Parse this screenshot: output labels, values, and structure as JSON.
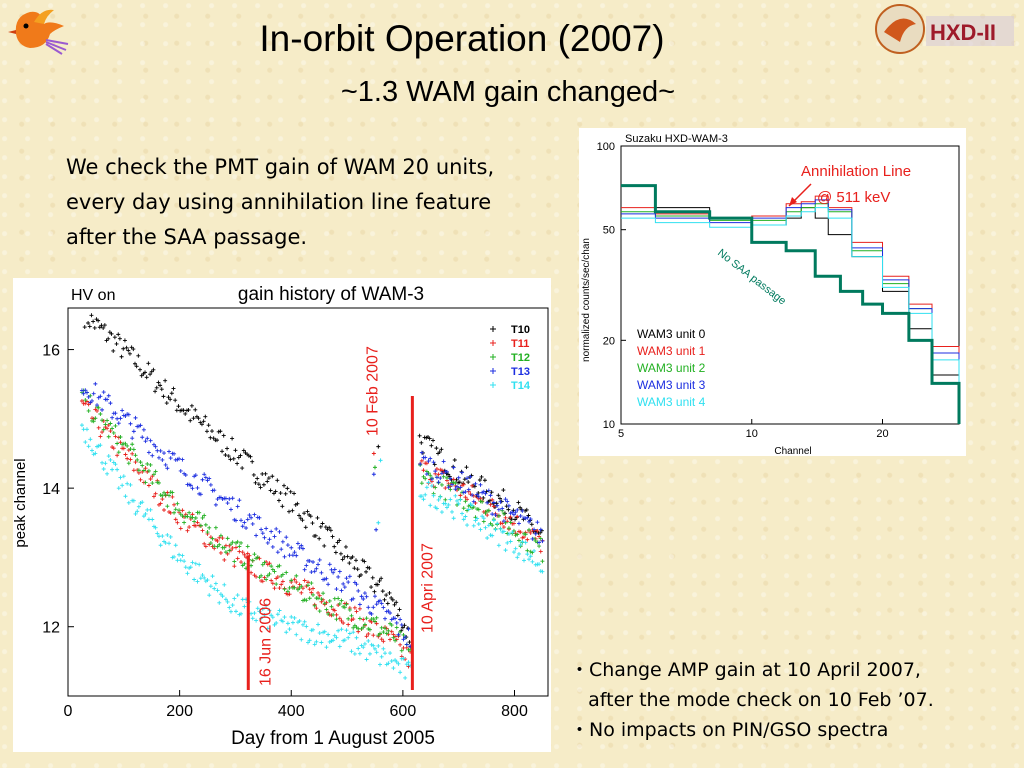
{
  "slide": {
    "title": "In-orbit Operation (2007)",
    "subtitle": "~1.3 WAM gain changed~",
    "intro_lines": [
      "We check the PMT gain of WAM 20 units,",
      "every day using annihilation line feature",
      "after the SAA passage."
    ],
    "bullets": [
      "・Change AMP gain at 10 April 2007,",
      "   after the mode check on 10 Feb ’07.",
      "・No impacts on PIN/GSO spectra"
    ],
    "logo_text": "HXD-II"
  },
  "colors": {
    "unit0": "#000000",
    "unit1": "#e8201c",
    "unit2": "#22b022",
    "unit3": "#1c2ee0",
    "unit4": "#30e0f0",
    "marker": "#e8201c",
    "annotation": "#e8201c",
    "passage": "#007a5e"
  },
  "chart_data": [
    {
      "type": "scatter",
      "title": "gain history of WAM-3",
      "corner_label": "HV on",
      "xlabel": "Day from 1 August 2005",
      "ylabel": "peak channel",
      "xlim": [
        0,
        860
      ],
      "ylim": [
        11,
        16.6
      ],
      "xticks": [
        0,
        200,
        400,
        600,
        800
      ],
      "yticks": [
        12,
        14,
        16
      ],
      "series": [
        {
          "name": "T10",
          "points": [
            [
              30,
              16.5
            ],
            [
              100,
              16.0
            ],
            [
              200,
              15.2
            ],
            [
              300,
              14.5
            ],
            [
              400,
              13.8
            ],
            [
              500,
              13.0
            ],
            [
              580,
              12.4
            ],
            [
              615,
              11.8
            ],
            [
              630,
              14.7
            ],
            [
              700,
              14.2
            ],
            [
              800,
              13.7
            ],
            [
              850,
              13.3
            ]
          ]
        },
        {
          "name": "T11",
          "points": [
            [
              25,
              15.2
            ],
            [
              100,
              14.5
            ],
            [
              200,
              13.6
            ],
            [
              300,
              13.0
            ],
            [
              400,
              12.6
            ],
            [
              500,
              12.2
            ],
            [
              580,
              11.8
            ],
            [
              615,
              11.5
            ],
            [
              630,
              14.3
            ],
            [
              700,
              14.0
            ],
            [
              800,
              13.5
            ],
            [
              850,
              13.2
            ]
          ]
        },
        {
          "name": "T12",
          "points": [
            [
              25,
              15.3
            ],
            [
              100,
              14.6
            ],
            [
              200,
              13.7
            ],
            [
              300,
              13.1
            ],
            [
              400,
              12.6
            ],
            [
              500,
              12.2
            ],
            [
              580,
              11.9
            ],
            [
              615,
              11.6
            ],
            [
              630,
              14.2
            ],
            [
              700,
              13.9
            ],
            [
              800,
              13.4
            ],
            [
              850,
              13.1
            ]
          ]
        },
        {
          "name": "T13",
          "points": [
            [
              25,
              15.5
            ],
            [
              100,
              15.0
            ],
            [
              200,
              14.3
            ],
            [
              300,
              13.7
            ],
            [
              400,
              13.1
            ],
            [
              500,
              12.6
            ],
            [
              580,
              12.1
            ],
            [
              615,
              11.8
            ],
            [
              630,
              14.4
            ],
            [
              700,
              14.1
            ],
            [
              800,
              13.6
            ],
            [
              850,
              13.3
            ]
          ]
        },
        {
          "name": "T14",
          "points": [
            [
              25,
              14.9
            ],
            [
              100,
              14.0
            ],
            [
              200,
              13.0
            ],
            [
              300,
              12.3
            ],
            [
              400,
              12.0
            ],
            [
              500,
              11.8
            ],
            [
              580,
              11.5
            ],
            [
              615,
              11.3
            ],
            [
              630,
              14.0
            ],
            [
              700,
              13.7
            ],
            [
              800,
              13.2
            ],
            [
              850,
              12.9
            ]
          ]
        }
      ],
      "markers": [
        {
          "day": 323,
          "label": "16 Jun 2006"
        },
        {
          "day": 558,
          "label": "10 Feb 2007"
        },
        {
          "day": 617,
          "label": "10 Apri 2007"
        }
      ]
    },
    {
      "type": "line",
      "title": "Suzaku HXD-WAM-3",
      "xlabel": "Channel",
      "ylabel": "normalized counts/sec/chan",
      "xlim": [
        5,
        30
      ],
      "ylim": [
        10,
        100
      ],
      "yscale": "log",
      "xscale": "log",
      "xticks": [
        5,
        10,
        20
      ],
      "yticks": [
        10,
        20,
        50,
        100
      ],
      "annotation": "Annihilation Line\n@ 511 keV",
      "annotation_lines": [
        "Annihilation Line",
        "@ 511 keV"
      ],
      "passage_label": "No SAA passage",
      "series": [
        {
          "name": "WAM3 unit 0",
          "points": [
            [
              5,
              72
            ],
            [
              6,
              60
            ],
            [
              8,
              55
            ],
            [
              10,
              52
            ],
            [
              12,
              55
            ],
            [
              13,
              60
            ],
            [
              14,
              55
            ],
            [
              15,
              48
            ],
            [
              17,
              40
            ],
            [
              20,
              30
            ],
            [
              23,
              22
            ],
            [
              26,
              15
            ],
            [
              30,
              10
            ]
          ]
        },
        {
          "name": "WAM3 unit 1",
          "points": [
            [
              5,
              60
            ],
            [
              6,
              57
            ],
            [
              8,
              55
            ],
            [
              10,
              56
            ],
            [
              12,
              62
            ],
            [
              13,
              63
            ],
            [
              14,
              66
            ],
            [
              15,
              60
            ],
            [
              17,
              45
            ],
            [
              20,
              34
            ],
            [
              23,
              27
            ],
            [
              26,
              19
            ],
            [
              30,
              11
            ]
          ]
        },
        {
          "name": "WAM3 unit 2",
          "points": [
            [
              5,
              58
            ],
            [
              6,
              56
            ],
            [
              8,
              54
            ],
            [
              10,
              54
            ],
            [
              12,
              58
            ],
            [
              13,
              60
            ],
            [
              14,
              62
            ],
            [
              15,
              58
            ],
            [
              17,
              42
            ],
            [
              20,
              32
            ],
            [
              23,
              26
            ],
            [
              26,
              18
            ],
            [
              30,
              11
            ]
          ]
        },
        {
          "name": "WAM3 unit 3",
          "points": [
            [
              5,
              57
            ],
            [
              6,
              55
            ],
            [
              8,
              53
            ],
            [
              10,
              55
            ],
            [
              12,
              60
            ],
            [
              13,
              62
            ],
            [
              14,
              64
            ],
            [
              15,
              59
            ],
            [
              17,
              43
            ],
            [
              20,
              33
            ],
            [
              23,
              26
            ],
            [
              26,
              18
            ],
            [
              30,
              11
            ]
          ]
        },
        {
          "name": "WAM3 unit 4",
          "points": [
            [
              5,
              55
            ],
            [
              6,
              53
            ],
            [
              8,
              51
            ],
            [
              10,
              52
            ],
            [
              12,
              56
            ],
            [
              13,
              58
            ],
            [
              14,
              60
            ],
            [
              15,
              55
            ],
            [
              17,
              40
            ],
            [
              20,
              31
            ],
            [
              23,
              25
            ],
            [
              26,
              17
            ],
            [
              30,
              10
            ]
          ]
        },
        {
          "name": "No SAA passage",
          "points": [
            [
              5,
              72
            ],
            [
              6,
              58
            ],
            [
              8,
              55
            ],
            [
              10,
              45
            ],
            [
              12,
              42
            ],
            [
              14,
              34
            ],
            [
              16,
              30
            ],
            [
              18,
              27
            ],
            [
              20,
              25
            ],
            [
              23,
              20
            ],
            [
              26,
              14
            ],
            [
              30,
              10
            ]
          ]
        }
      ]
    }
  ]
}
